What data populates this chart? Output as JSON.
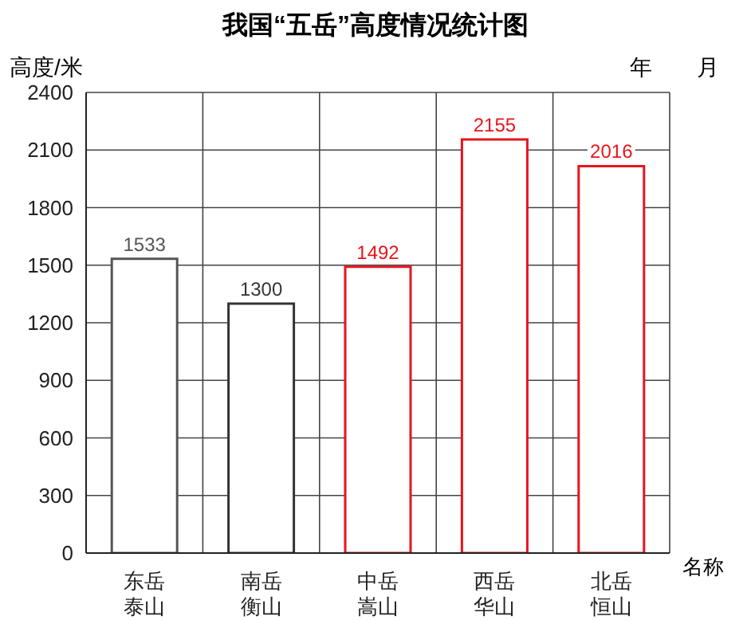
{
  "chart_data": {
    "type": "bar",
    "title": "我国“五岳”高度情况统计图",
    "xlabel": "名称",
    "ylabel": "高度/米",
    "annotations": [
      "年　　月"
    ],
    "categories": [
      "东岳泰山",
      "南岳衡山",
      "中岳嵩山",
      "西岳华山",
      "北岳恒山"
    ],
    "values": [
      1533,
      1300,
      1492,
      2155,
      2016
    ],
    "colors": [
      "#555555",
      "#333333",
      "#e8141c",
      "#e8141c",
      "#e8141c"
    ],
    "ylim": [
      0,
      2400
    ],
    "yticks": [
      0,
      300,
      600,
      900,
      1200,
      1500,
      1800,
      2100,
      2400
    ],
    "grid": true,
    "data_labels": true
  }
}
